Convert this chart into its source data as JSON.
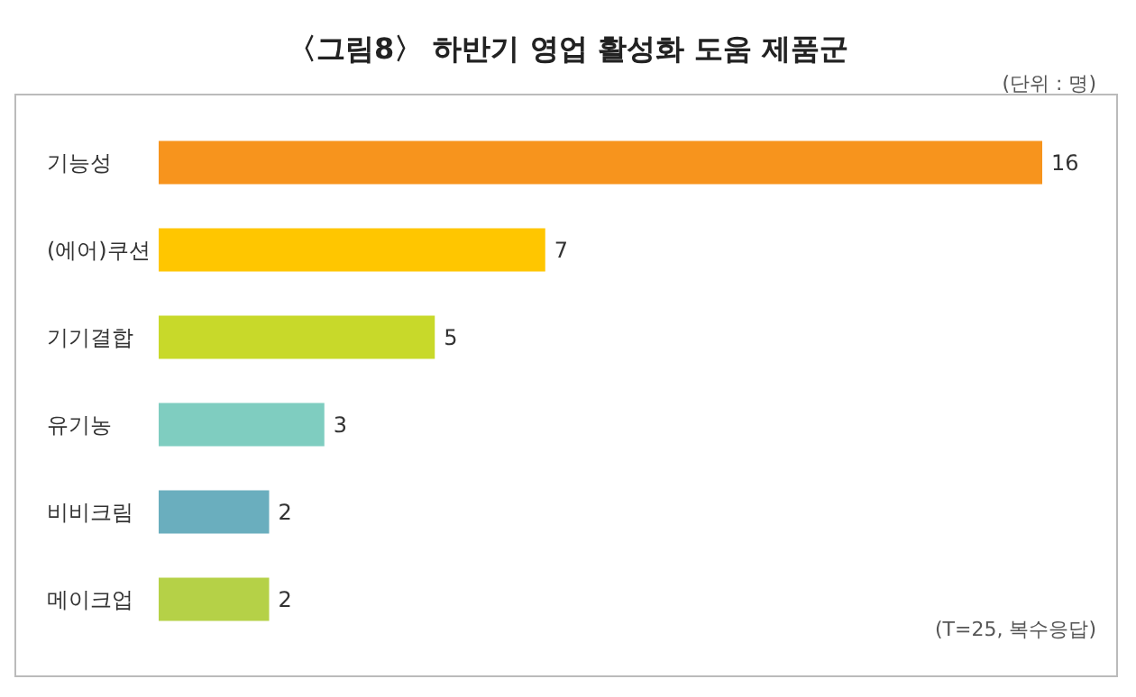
{
  "chart_data": {
    "type": "bar",
    "orientation": "horizontal",
    "title": "〈그림8〉 하반기 영업 활성화 도움 제품군",
    "categories": [
      "기능성",
      "(에어)쿠션",
      "기기결합",
      "유기농",
      "비비크림",
      "메이크업"
    ],
    "values": [
      16,
      7,
      5,
      3,
      2,
      2
    ],
    "colors": [
      "#f7941d",
      "#ffc600",
      "#c8d92a",
      "#7fcdc0",
      "#6aaebe",
      "#b5d147"
    ],
    "data_labels": true,
    "annotations": [
      "(단위 : 명)",
      "(T=25, 복수응답)"
    ]
  }
}
